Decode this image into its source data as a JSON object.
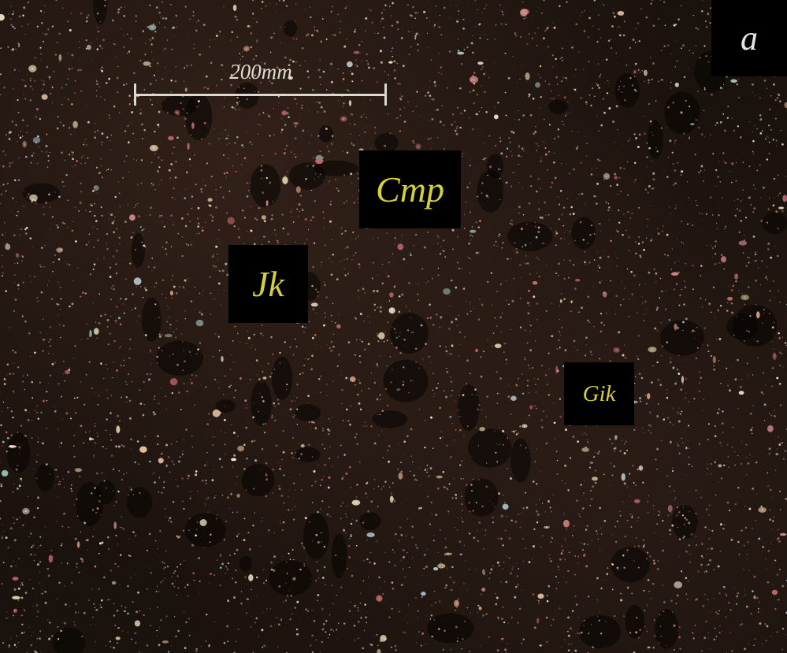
{
  "image": {
    "panel_letter": "a",
    "scale_bar_label": "200mm",
    "mineral_labels": {
      "cmp": "Cmp",
      "jk": "Jk",
      "gik": "Gik"
    }
  },
  "colors": {
    "background": "#1a120d",
    "label_box": "#000000",
    "label_text": "#d4cf3a",
    "panel_letter_text": "#e8e6e0",
    "scale_bar": "#dcd8d0"
  }
}
